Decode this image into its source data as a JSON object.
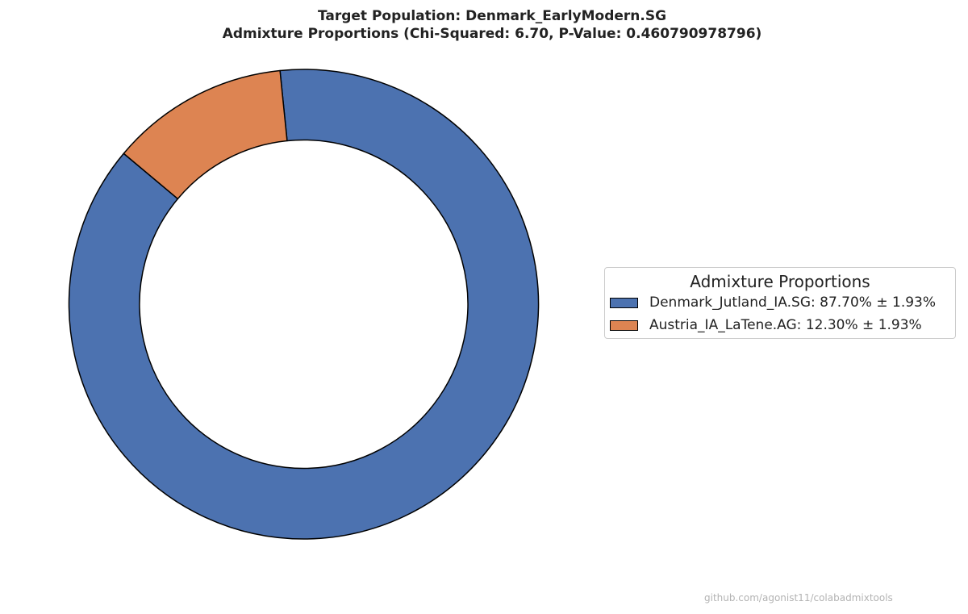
{
  "title_line1": "Target Population: Denmark_EarlyModern.SG",
  "title_line2": "Admixture Proportions (Chi-Squared: 6.70, P-Value: 0.460790978796)",
  "legend": {
    "title": "Admixture Proportions",
    "items": [
      {
        "label": "Denmark_Jutland_IA.SG: 87.70% ± 1.93%",
        "color": "#4c72b0"
      },
      {
        "label": "Austria_IA_LaTene.AG: 12.30% ± 1.93%",
        "color": "#dd8452"
      }
    ]
  },
  "watermark": "github.com/agonist11/colabadmixtools",
  "chart_data": {
    "type": "pie",
    "variant": "donut",
    "title": "Target Population: Denmark_EarlyModern.SG\nAdmixture Proportions (Chi-Squared: 6.70, P-Value: 0.460790978796)",
    "labels": [
      "Denmark_Jutland_IA.SG",
      "Austria_IA_LaTene.AG"
    ],
    "values": [
      87.7,
      12.3
    ],
    "errors": [
      1.93,
      1.93
    ],
    "colors": [
      "#4c72b0",
      "#dd8452"
    ],
    "legend_placement": "right",
    "legend_title": "Admixture Proportions"
  }
}
